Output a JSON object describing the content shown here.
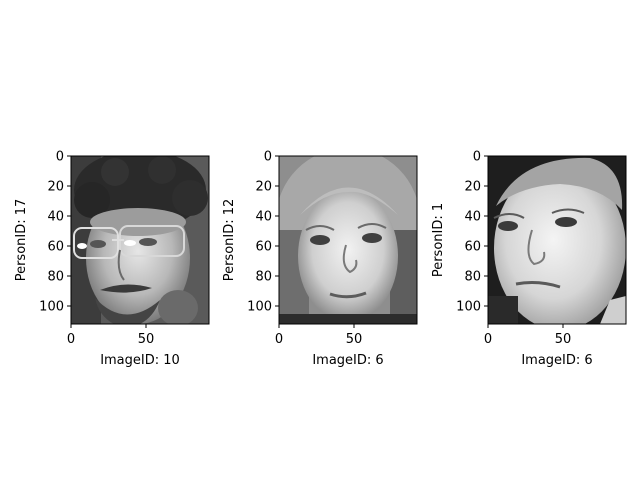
{
  "panels": [
    {
      "ylabel": "PersonID: 17",
      "xlabel": "ImageID: 10",
      "image_description": "grayscale face photo: man with curly dark hair, glasses, moustache and beard, head tilted",
      "xticks": [
        "0",
        "50"
      ],
      "yticks": [
        "0",
        "20",
        "40",
        "60",
        "80",
        "100"
      ]
    },
    {
      "ylabel": "PersonID: 12",
      "xlabel": "ImageID: 6",
      "image_description": "grayscale face photo: young man with long light hair parted in the middle",
      "xticks": [
        "0",
        "50"
      ],
      "yticks": [
        "0",
        "20",
        "40",
        "60",
        "80",
        "100"
      ]
    },
    {
      "ylabel": "PersonID: 1",
      "xlabel": "ImageID: 6",
      "image_description": "grayscale face photo: man with short hair, bright face, dark background",
      "xticks": [
        "0",
        "50"
      ],
      "yticks": [
        "0",
        "20",
        "40",
        "60",
        "80",
        "100"
      ]
    }
  ],
  "image_width": 92,
  "image_height": 112,
  "colors": {
    "axis": "#000000",
    "background": "#ffffff"
  }
}
